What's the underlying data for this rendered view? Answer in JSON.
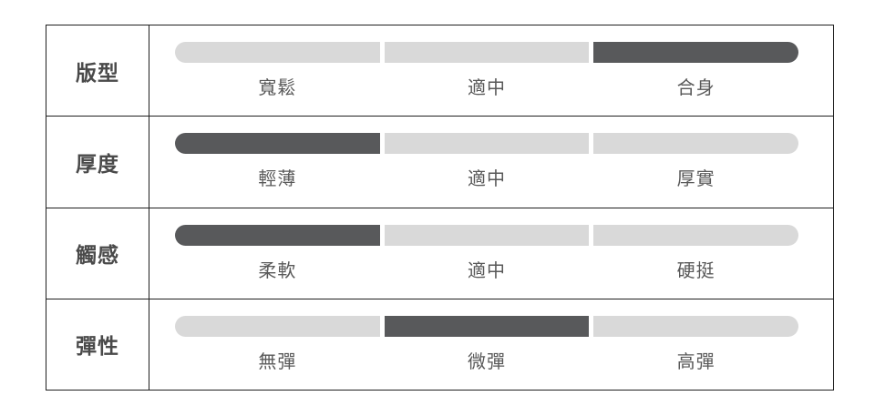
{
  "colors": {
    "segment_active": "#58595b",
    "segment_inactive": "#d9d9d9",
    "table_border": "#1f1f1f",
    "header_text": "#4a4a4a",
    "label_text": "#595959",
    "background": "#ffffff"
  },
  "table": {
    "rows": [
      {
        "attribute": "版型",
        "options": [
          "寬鬆",
          "適中",
          "合身"
        ],
        "selected": "合身",
        "selected_index": 2
      },
      {
        "attribute": "厚度",
        "options": [
          "輕薄",
          "適中",
          "厚實"
        ],
        "selected": "輕薄",
        "selected_index": 0
      },
      {
        "attribute": "觸感",
        "options": [
          "柔軟",
          "適中",
          "硬挺"
        ],
        "selected": "柔軟",
        "selected_index": 0
      },
      {
        "attribute": "彈性",
        "options": [
          "無彈",
          "微彈",
          "高彈"
        ],
        "selected": "微彈",
        "selected_index": 1
      }
    ]
  },
  "chart_data": {
    "type": "table",
    "title": "",
    "rows": [
      {
        "attribute": "版型",
        "scale": [
          "寬鬆",
          "適中",
          "合身"
        ],
        "value": "合身",
        "value_index": 2
      },
      {
        "attribute": "厚度",
        "scale": [
          "輕薄",
          "適中",
          "厚實"
        ],
        "value": "輕薄",
        "value_index": 0
      },
      {
        "attribute": "觸感",
        "scale": [
          "柔軟",
          "適中",
          "硬挺"
        ],
        "value": "柔軟",
        "value_index": 0
      },
      {
        "attribute": "彈性",
        "scale": [
          "無彈",
          "微彈",
          "高彈"
        ],
        "value": "微彈",
        "value_index": 1
      }
    ],
    "legend_position": "none",
    "grid": false
  }
}
